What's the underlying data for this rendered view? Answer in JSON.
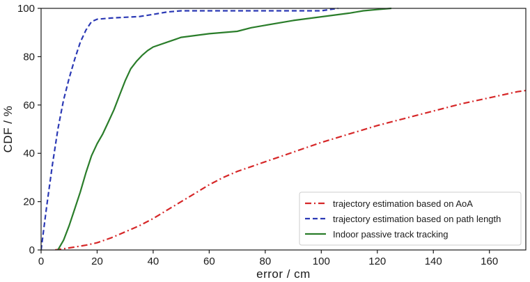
{
  "chart_data": {
    "type": "line",
    "xlabel": "error / cm",
    "ylabel": "CDF / %",
    "xlim": [
      0,
      173
    ],
    "ylim": [
      0,
      100
    ],
    "xticks": [
      0,
      20,
      40,
      60,
      80,
      100,
      120,
      140,
      160
    ],
    "yticks": [
      0,
      20,
      40,
      60,
      80,
      100
    ],
    "grid": false,
    "legend_position": "lower-right",
    "series": [
      {
        "name": "trajectory estimation based on AoA",
        "color": "#d62728",
        "dash": "dash-dot",
        "x": [
          5,
          8,
          12,
          16,
          20,
          25,
          30,
          35,
          40,
          45,
          50,
          55,
          60,
          65,
          70,
          75,
          80,
          85,
          90,
          95,
          100,
          110,
          120,
          130,
          140,
          150,
          160,
          170,
          173
        ],
        "y": [
          0,
          0.5,
          1.2,
          2,
          3,
          5,
          7.5,
          10,
          13,
          16.5,
          20,
          23.5,
          27,
          30,
          32.5,
          34.5,
          36.5,
          38.5,
          40.5,
          42.5,
          44.5,
          48,
          51.5,
          54.5,
          57.5,
          60.5,
          63,
          65.5,
          66
        ]
      },
      {
        "name": "trajectory estimation based on path length",
        "color": "#2b39b5",
        "dash": "dashed",
        "x": [
          0,
          2,
          4,
          6,
          8,
          10,
          12,
          14,
          16,
          18,
          20,
          25,
          30,
          35,
          40,
          45,
          50,
          60,
          70,
          80,
          90,
          100,
          106
        ],
        "y": [
          0,
          18,
          35,
          50,
          62,
          71,
          79,
          86,
          91,
          94.5,
          95.5,
          96,
          96.3,
          96.6,
          97.5,
          98.5,
          99,
          99,
          99,
          99,
          99,
          99,
          100
        ]
      },
      {
        "name": "Indoor passive track tracking",
        "color": "#2a7d2a",
        "dash": "solid",
        "x": [
          6,
          8,
          10,
          12,
          14,
          16,
          18,
          20,
          22,
          24,
          26,
          28,
          30,
          32,
          34,
          36,
          38,
          40,
          45,
          50,
          60,
          70,
          75,
          80,
          90,
          100,
          110,
          115,
          120,
          125
        ],
        "y": [
          0,
          4,
          10,
          17,
          24,
          32,
          39,
          44,
          48,
          53,
          58,
          64,
          70,
          75,
          78,
          80.5,
          82.5,
          84,
          86,
          88,
          89.5,
          90.5,
          92,
          93,
          95,
          96.5,
          98,
          99,
          99.5,
          100
        ]
      }
    ]
  }
}
